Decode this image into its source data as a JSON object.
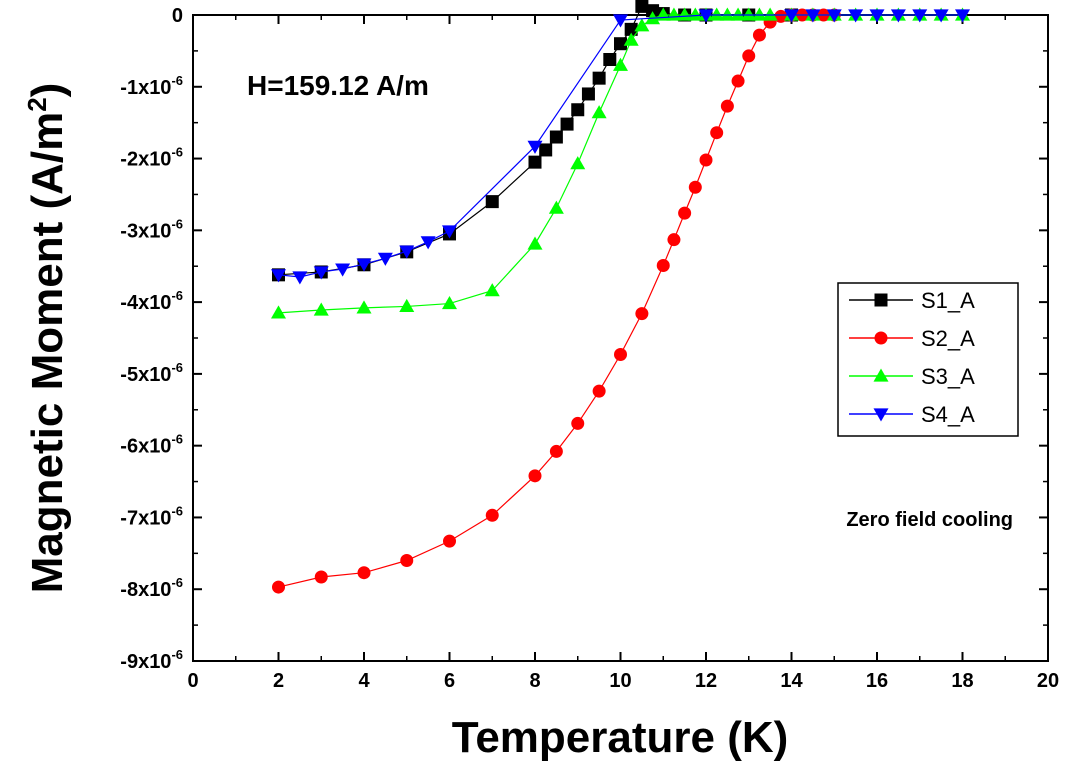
{
  "chart_data": {
    "type": "line",
    "title": "",
    "xlabel": "Temperature (K)",
    "ylabel_main": "Magnetic Moment (A/m",
    "ylabel_sup": "2",
    "ylabel_close": ")",
    "xlim": [
      0,
      20
    ],
    "ylim": [
      -9e-06,
      0
    ],
    "x_ticks": [
      0,
      2,
      4,
      6,
      8,
      10,
      12,
      14,
      16,
      18,
      20
    ],
    "y_ticks": [
      {
        "value": 0,
        "base": "0",
        "exp": ""
      },
      {
        "value": -1e-06,
        "base": "-1x10",
        "exp": "-6"
      },
      {
        "value": -2e-06,
        "base": "-2x10",
        "exp": "-6"
      },
      {
        "value": -3e-06,
        "base": "-3x10",
        "exp": "-6"
      },
      {
        "value": -4e-06,
        "base": "-4x10",
        "exp": "-6"
      },
      {
        "value": -5e-06,
        "base": "-5x10",
        "exp": "-6"
      },
      {
        "value": -6e-06,
        "base": "-6x10",
        "exp": "-6"
      },
      {
        "value": -7e-06,
        "base": "-7x10",
        "exp": "-6"
      },
      {
        "value": -8e-06,
        "base": "-8x10",
        "exp": "-6"
      },
      {
        "value": -9e-06,
        "base": "-9x10",
        "exp": "-6"
      }
    ],
    "grid": false,
    "legend_position": "right",
    "annotations": {
      "field": "H=159.12 A/m",
      "mode": "Zero field cooling"
    },
    "series": [
      {
        "name": "S1_A",
        "color": "#000000",
        "marker": "square",
        "points": [
          [
            2,
            -3.62e-06
          ],
          [
            3,
            -3.58e-06
          ],
          [
            4,
            -3.48e-06
          ],
          [
            5,
            -3.3e-06
          ],
          [
            6,
            -3.05e-06
          ],
          [
            7,
            -2.6e-06
          ],
          [
            8,
            -2.05e-06
          ],
          [
            8.25,
            -1.88e-06
          ],
          [
            8.5,
            -1.7e-06
          ],
          [
            8.75,
            -1.52e-06
          ],
          [
            9,
            -1.32e-06
          ],
          [
            9.25,
            -1.1e-06
          ],
          [
            9.5,
            -8.8e-07
          ],
          [
            9.75,
            -6.2e-07
          ],
          [
            10,
            -4e-07
          ],
          [
            10.25,
            -2e-07
          ],
          [
            10.5,
            1.2e-07
          ],
          [
            10.75,
            6e-08
          ],
          [
            11,
            2e-08
          ],
          [
            11.5,
            0.0
          ],
          [
            12,
            0.0
          ],
          [
            13,
            0.0
          ],
          [
            14,
            0.0
          ]
        ]
      },
      {
        "name": "S2_A",
        "color": "#ff0000",
        "marker": "circle",
        "points": [
          [
            2,
            -7.97e-06
          ],
          [
            3,
            -7.83e-06
          ],
          [
            4,
            -7.77e-06
          ],
          [
            5,
            -7.6e-06
          ],
          [
            6,
            -7.33e-06
          ],
          [
            7,
            -6.97e-06
          ],
          [
            8,
            -6.42e-06
          ],
          [
            8.5,
            -6.08e-06
          ],
          [
            9,
            -5.69e-06
          ],
          [
            9.5,
            -5.24e-06
          ],
          [
            10,
            -4.73e-06
          ],
          [
            10.5,
            -4.16e-06
          ],
          [
            11,
            -3.49e-06
          ],
          [
            11.25,
            -3.13e-06
          ],
          [
            11.5,
            -2.76e-06
          ],
          [
            11.75,
            -2.4e-06
          ],
          [
            12,
            -2.02e-06
          ],
          [
            12.25,
            -1.64e-06
          ],
          [
            12.5,
            -1.27e-06
          ],
          [
            12.75,
            -9.2e-07
          ],
          [
            13,
            -5.7e-07
          ],
          [
            13.25,
            -2.8e-07
          ],
          [
            13.5,
            -1e-07
          ],
          [
            13.75,
            -2e-08
          ],
          [
            14,
            0.0
          ],
          [
            14.25,
            0.0
          ],
          [
            14.5,
            0.0
          ],
          [
            14.75,
            0.0
          ],
          [
            15,
            0.0
          ]
        ]
      },
      {
        "name": "S3_A",
        "color": "#00ff00",
        "marker": "triangle-up",
        "points": [
          [
            2,
            -4.15e-06
          ],
          [
            3,
            -4.11e-06
          ],
          [
            4,
            -4.08e-06
          ],
          [
            5,
            -4.06e-06
          ],
          [
            6,
            -4.02e-06
          ],
          [
            7,
            -3.84e-06
          ],
          [
            8,
            -3.19e-06
          ],
          [
            8.5,
            -2.69e-06
          ],
          [
            9,
            -2.07e-06
          ],
          [
            9.5,
            -1.36e-06
          ],
          [
            10,
            -7e-07
          ],
          [
            10.25,
            -3.5e-07
          ],
          [
            10.5,
            -1.5e-07
          ],
          [
            10.75,
            -5e-08
          ],
          [
            11,
            0.0
          ],
          [
            11.25,
            0.0
          ],
          [
            11.5,
            0.0
          ],
          [
            11.75,
            0.0
          ],
          [
            12,
            0.0
          ],
          [
            12.25,
            0.0
          ],
          [
            12.5,
            0.0
          ],
          [
            12.75,
            0.0
          ],
          [
            13,
            0.0
          ],
          [
            13.25,
            0.0
          ],
          [
            13.5,
            0.0
          ],
          [
            14,
            0.0
          ],
          [
            14.5,
            0.0
          ],
          [
            15,
            0.0
          ],
          [
            15.5,
            0.0
          ],
          [
            16,
            0.0
          ],
          [
            16.5,
            0.0
          ],
          [
            17,
            0.0
          ],
          [
            17.5,
            0.0
          ],
          [
            18,
            0.0
          ]
        ]
      },
      {
        "name": "S4_A",
        "color": "#0000ff",
        "marker": "triangle-down",
        "points": [
          [
            2,
            -3.62e-06
          ],
          [
            2.5,
            -3.65e-06
          ],
          [
            3,
            -3.58e-06
          ],
          [
            3.5,
            -3.54e-06
          ],
          [
            4,
            -3.47e-06
          ],
          [
            4.5,
            -3.39e-06
          ],
          [
            5,
            -3.29e-06
          ],
          [
            5.5,
            -3.16e-06
          ],
          [
            6,
            -3.01e-06
          ],
          [
            8,
            -1.83e-06
          ],
          [
            10,
            -7e-08
          ],
          [
            12,
            0.0
          ],
          [
            14,
            0.0
          ],
          [
            14.5,
            0.0
          ],
          [
            15,
            0.0
          ],
          [
            15.5,
            0.0
          ],
          [
            16,
            0.0
          ],
          [
            16.5,
            0.0
          ],
          [
            17,
            0.0
          ],
          [
            17.5,
            0.0
          ],
          [
            18,
            0.0
          ]
        ]
      }
    ]
  }
}
